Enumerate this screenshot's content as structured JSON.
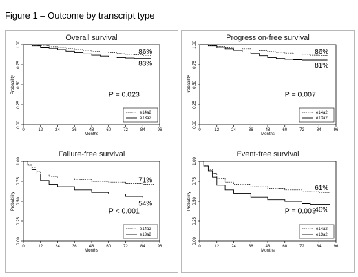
{
  "figure_title": "Figure 1 – Outcome by transcript type",
  "chart_data": [
    {
      "type": "line",
      "title": "Overall survival",
      "xlabel": "Months",
      "ylabel": "Probability",
      "xlim": [
        0,
        96
      ],
      "ylim": [
        0,
        1
      ],
      "x_ticks": [
        "0",
        "12",
        "24",
        "36",
        "48",
        "60",
        "72",
        "84",
        "96"
      ],
      "y_ticks": [
        "0.00",
        "0.25",
        "0.50",
        "0.75",
        "1.00"
      ],
      "legend_position": "bottom-right",
      "annotations": {
        "p_value": "P = 0.023",
        "series_labels": [
          "86%",
          "83%"
        ]
      },
      "series": [
        {
          "name": "e14a2",
          "style": "dashed",
          "points": [
            [
              0,
              1.0
            ],
            [
              6,
              0.99
            ],
            [
              12,
              0.985
            ],
            [
              18,
              0.975
            ],
            [
              24,
              0.965
            ],
            [
              30,
              0.955
            ],
            [
              36,
              0.94
            ],
            [
              42,
              0.93
            ],
            [
              48,
              0.92
            ],
            [
              54,
              0.91
            ],
            [
              60,
              0.9
            ],
            [
              66,
              0.89
            ],
            [
              72,
              0.88
            ],
            [
              78,
              0.875
            ],
            [
              84,
              0.865
            ],
            [
              90,
              0.86
            ]
          ]
        },
        {
          "name": "e13a2",
          "style": "solid",
          "points": [
            [
              0,
              1.0
            ],
            [
              6,
              0.985
            ],
            [
              12,
              0.97
            ],
            [
              18,
              0.955
            ],
            [
              24,
              0.94
            ],
            [
              30,
              0.92
            ],
            [
              36,
              0.9
            ],
            [
              42,
              0.885
            ],
            [
              48,
              0.87
            ],
            [
              54,
              0.86
            ],
            [
              60,
              0.85
            ],
            [
              66,
              0.84
            ],
            [
              72,
              0.835
            ],
            [
              78,
              0.83
            ],
            [
              90,
              0.83
            ]
          ]
        }
      ]
    },
    {
      "type": "line",
      "title": "Progression-free survival",
      "xlabel": "Months",
      "ylabel": "Probability",
      "xlim": [
        0,
        96
      ],
      "ylim": [
        0,
        1
      ],
      "x_ticks": [
        "0",
        "12",
        "24",
        "36",
        "48",
        "60",
        "72",
        "84",
        "96"
      ],
      "y_ticks": [
        "0.00",
        "0.25",
        "0.50",
        "0.75",
        "1.00"
      ],
      "legend_position": "bottom-right",
      "annotations": {
        "p_value": "P = 0.007",
        "series_labels": [
          "86%",
          "81%"
        ]
      },
      "series": [
        {
          "name": "e14a2",
          "style": "dashed",
          "points": [
            [
              0,
              1.0
            ],
            [
              6,
              0.99
            ],
            [
              12,
              0.98
            ],
            [
              18,
              0.97
            ],
            [
              24,
              0.96
            ],
            [
              30,
              0.95
            ],
            [
              36,
              0.935
            ],
            [
              42,
              0.925
            ],
            [
              48,
              0.915
            ],
            [
              54,
              0.905
            ],
            [
              60,
              0.895
            ],
            [
              66,
              0.885
            ],
            [
              72,
              0.88
            ],
            [
              78,
              0.87
            ],
            [
              84,
              0.865
            ],
            [
              90,
              0.86
            ]
          ]
        },
        {
          "name": "e13a2",
          "style": "solid",
          "points": [
            [
              0,
              1.0
            ],
            [
              6,
              0.985
            ],
            [
              12,
              0.965
            ],
            [
              18,
              0.95
            ],
            [
              24,
              0.93
            ],
            [
              30,
              0.91
            ],
            [
              36,
              0.89
            ],
            [
              42,
              0.865
            ],
            [
              48,
              0.84
            ],
            [
              54,
              0.83
            ],
            [
              60,
              0.82
            ],
            [
              66,
              0.815
            ],
            [
              72,
              0.81
            ],
            [
              90,
              0.81
            ]
          ]
        }
      ]
    },
    {
      "type": "line",
      "title": "Failure-free survival",
      "xlabel": "Months",
      "ylabel": "Probability",
      "xlim": [
        0,
        96
      ],
      "ylim": [
        0,
        1
      ],
      "x_ticks": [
        "0",
        "12",
        "24",
        "36",
        "48",
        "60",
        "72",
        "84",
        "96"
      ],
      "y_ticks": [
        "0.00",
        "0.25",
        "0.50",
        "0.75",
        "1.00"
      ],
      "legend_position": "bottom-right",
      "annotations": {
        "p_value": "P < 0.001",
        "series_labels": [
          "71%",
          "54%"
        ]
      },
      "series": [
        {
          "name": "e14a2",
          "style": "dashed",
          "points": [
            [
              0,
              1.0
            ],
            [
              3,
              0.96
            ],
            [
              6,
              0.92
            ],
            [
              9,
              0.87
            ],
            [
              12,
              0.84
            ],
            [
              18,
              0.81
            ],
            [
              24,
              0.79
            ],
            [
              36,
              0.77
            ],
            [
              48,
              0.75
            ],
            [
              60,
              0.74
            ],
            [
              72,
              0.72
            ],
            [
              84,
              0.71
            ],
            [
              92,
              0.71
            ]
          ]
        },
        {
          "name": "e13a2",
          "style": "solid",
          "points": [
            [
              0,
              1.0
            ],
            [
              3,
              0.95
            ],
            [
              6,
              0.9
            ],
            [
              9,
              0.84
            ],
            [
              12,
              0.76
            ],
            [
              18,
              0.71
            ],
            [
              24,
              0.68
            ],
            [
              36,
              0.64
            ],
            [
              48,
              0.61
            ],
            [
              60,
              0.59
            ],
            [
              72,
              0.56
            ],
            [
              84,
              0.54
            ],
            [
              92,
              0.54
            ]
          ]
        }
      ]
    },
    {
      "type": "line",
      "title": "Event-free survival",
      "xlabel": "Months",
      "ylabel": "Probability",
      "xlim": [
        0,
        96
      ],
      "ylim": [
        0,
        1
      ],
      "x_ticks": [
        "0",
        "12",
        "24",
        "36",
        "48",
        "60",
        "72",
        "84",
        "96"
      ],
      "y_ticks": [
        "0.00",
        "0.25",
        "0.50",
        "0.75",
        "1.00"
      ],
      "legend_position": "bottom-right",
      "annotations": {
        "p_value": "P = 0.003",
        "series_labels": [
          "61%",
          "46%"
        ]
      },
      "series": [
        {
          "name": "e14a2",
          "style": "dashed",
          "points": [
            [
              0,
              1.0
            ],
            [
              3,
              0.95
            ],
            [
              6,
              0.9
            ],
            [
              9,
              0.85
            ],
            [
              12,
              0.78
            ],
            [
              18,
              0.74
            ],
            [
              24,
              0.71
            ],
            [
              36,
              0.68
            ],
            [
              48,
              0.66
            ],
            [
              60,
              0.64
            ],
            [
              72,
              0.62
            ],
            [
              84,
              0.61
            ],
            [
              92,
              0.61
            ]
          ]
        },
        {
          "name": "e13a2",
          "style": "solid",
          "points": [
            [
              0,
              1.0
            ],
            [
              3,
              0.94
            ],
            [
              6,
              0.88
            ],
            [
              9,
              0.8
            ],
            [
              12,
              0.7
            ],
            [
              18,
              0.64
            ],
            [
              24,
              0.6
            ],
            [
              36,
              0.55
            ],
            [
              48,
              0.52
            ],
            [
              60,
              0.5
            ],
            [
              72,
              0.47
            ],
            [
              78,
              0.46
            ],
            [
              92,
              0.46
            ]
          ]
        }
      ]
    }
  ]
}
